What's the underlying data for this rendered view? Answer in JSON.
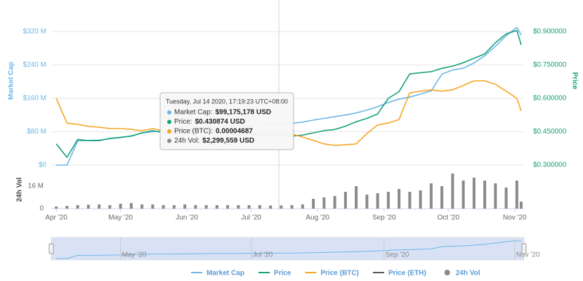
{
  "chart_data": [
    {
      "type": "line",
      "ylabel": "Market Cap",
      "y2label": "Price",
      "x": [
        "2020-04-01",
        "2020-04-06",
        "2020-04-11",
        "2020-04-16",
        "2020-04-21",
        "2020-04-26",
        "2020-05-01",
        "2020-05-06",
        "2020-05-11",
        "2020-05-16",
        "2020-05-21",
        "2020-05-26",
        "2020-05-31",
        "2020-06-05",
        "2020-06-10",
        "2020-06-15",
        "2020-06-20",
        "2020-06-25",
        "2020-06-30",
        "2020-07-05",
        "2020-07-10",
        "2020-07-15",
        "2020-07-20",
        "2020-07-25",
        "2020-07-30",
        "2020-08-04",
        "2020-08-09",
        "2020-08-14",
        "2020-08-19",
        "2020-08-24",
        "2020-08-29",
        "2020-09-03",
        "2020-09-08",
        "2020-09-13",
        "2020-09-18",
        "2020-09-23",
        "2020-09-28",
        "2020-10-03",
        "2020-10-08",
        "2020-10-13",
        "2020-10-18",
        "2020-10-23",
        "2020-10-28",
        "2020-11-02",
        "2020-11-04"
      ],
      "xlim": [
        "2020-03-30",
        "2020-11-05"
      ],
      "series": [
        {
          "name": "Market Cap",
          "color": "#6cb6e8",
          "axis": "y",
          "values": [
            0,
            0,
            58000000,
            59000000,
            60000000,
            63000000,
            66000000,
            70000000,
            77000000,
            80000000,
            82000000,
            83000000,
            86000000,
            88000000,
            90000000,
            91000000,
            92000000,
            93000000,
            95000000,
            96000000,
            98000000,
            99000000,
            100000000,
            103000000,
            108000000,
            112000000,
            116000000,
            120000000,
            125000000,
            132000000,
            140000000,
            150000000,
            158000000,
            163000000,
            170000000,
            178000000,
            218000000,
            228000000,
            232000000,
            245000000,
            262000000,
            285000000,
            310000000,
            330000000,
            312000000
          ]
        },
        {
          "name": "Price",
          "color": "#16a07a",
          "axis": "y2",
          "values": [
            0.395,
            0.335,
            0.415,
            0.41,
            0.41,
            0.42,
            0.425,
            0.43,
            0.445,
            0.455,
            0.445,
            0.44,
            0.45,
            0.455,
            0.45,
            0.445,
            0.44,
            0.435,
            0.44,
            0.435,
            0.432,
            0.431,
            0.43,
            0.435,
            0.445,
            0.455,
            0.46,
            0.475,
            0.495,
            0.51,
            0.53,
            0.6,
            0.63,
            0.71,
            0.715,
            0.72,
            0.735,
            0.745,
            0.76,
            0.78,
            0.8,
            0.85,
            0.89,
            0.905,
            0.84
          ]
        },
        {
          "name": "Price (BTC)",
          "color": "#f5a623",
          "axis": "y3",
          "values": [
            5.93e-05,
            5.03e-05,
            4.98e-05,
            4.91e-05,
            4.88e-05,
            4.83e-05,
            4.83e-05,
            4.8e-05,
            4.75e-05,
            4.83e-05,
            4.75e-05,
            4.7e-05,
            4.78e-05,
            4.8e-05,
            4.75e-05,
            4.73e-05,
            4.7e-05,
            4.68e-05,
            4.7e-05,
            4.68e-05,
            4.65e-05,
            4.65e-05,
            4.63e-05,
            4.52e-05,
            4.4e-05,
            4.27e-05,
            4.22e-05,
            4.24e-05,
            4.27e-05,
            4.65e-05,
            4.96e-05,
            5.03e-05,
            5.16e-05,
            6.13e-05,
            6.19e-05,
            6.24e-05,
            6.19e-05,
            6.24e-05,
            6.4e-05,
            6.57e-05,
            6.57e-05,
            6.44e-05,
            6.19e-05,
            5.93e-05,
            5.47e-05
          ]
        }
      ],
      "hidden_series": [
        {
          "name": "Price (ETH)",
          "color": "#555555"
        }
      ],
      "ylim": [
        0,
        362000000
      ],
      "yticks": [
        {
          "value": 0,
          "label": "$0"
        },
        {
          "value": 80000000,
          "label": "$80 M"
        },
        {
          "value": 160000000,
          "label": "$160 M"
        },
        {
          "value": 240000000,
          "label": "$240 M"
        },
        {
          "value": 320000000,
          "label": "$320 M"
        }
      ],
      "y2lim": [
        0.3,
        0.979
      ],
      "y2ticks": [
        {
          "value": 0.3,
          "label": "$0.300000"
        },
        {
          "value": 0.45,
          "label": "$0.450000"
        },
        {
          "value": 0.6,
          "label": "$0.600000"
        },
        {
          "value": 0.75,
          "label": "$0.750000"
        },
        {
          "value": 0.9,
          "label": "$0.900000"
        }
      ],
      "y3lim": [
        3.5e-05,
        9e-05
      ],
      "grid": true
    },
    {
      "type": "bar",
      "ylabel": "24h Vol",
      "x": [
        "2020-04-01",
        "2020-04-06",
        "2020-04-11",
        "2020-04-16",
        "2020-04-21",
        "2020-04-26",
        "2020-05-01",
        "2020-05-06",
        "2020-05-11",
        "2020-05-16",
        "2020-05-21",
        "2020-05-26",
        "2020-05-31",
        "2020-06-05",
        "2020-06-10",
        "2020-06-15",
        "2020-06-20",
        "2020-06-25",
        "2020-06-30",
        "2020-07-05",
        "2020-07-10",
        "2020-07-15",
        "2020-07-20",
        "2020-07-25",
        "2020-07-30",
        "2020-08-04",
        "2020-08-09",
        "2020-08-14",
        "2020-08-19",
        "2020-08-24",
        "2020-08-29",
        "2020-09-03",
        "2020-09-08",
        "2020-09-13",
        "2020-09-18",
        "2020-09-23",
        "2020-09-28",
        "2020-10-03",
        "2020-10-08",
        "2020-10-13",
        "2020-10-18",
        "2020-10-23",
        "2020-10-28",
        "2020-11-02",
        "2020-11-04"
      ],
      "xlim": [
        "2020-03-30",
        "2020-11-05"
      ],
      "series": [
        {
          "name": "24h Vol",
          "color": "#8a8a8a",
          "values": [
            1500000,
            2000000,
            2500000,
            2800000,
            3000000,
            2500000,
            3500000,
            4000000,
            3000000,
            3000000,
            2500000,
            2500000,
            3000000,
            2500000,
            2500000,
            2500000,
            2500000,
            2500000,
            2500000,
            2500000,
            2300000,
            2300000,
            2500000,
            3000000,
            7000000,
            8000000,
            9000000,
            12000000,
            16000000,
            10000000,
            11000000,
            12000000,
            14000000,
            12000000,
            13000000,
            18000000,
            16000000,
            25000000,
            20000000,
            22000000,
            20000000,
            18000000,
            15000000,
            20000000,
            5000000
          ]
        }
      ],
      "ylim": [
        0,
        26000000
      ],
      "yticks": [
        0,
        {
          "value": 16000000,
          "label": "16 M"
        }
      ],
      "xticks": [
        {
          "value": "2020-04-01",
          "label": "Apr '20"
        },
        {
          "value": "2020-05-01",
          "label": "May '20"
        },
        {
          "value": "2020-06-01",
          "label": "Jun '20"
        },
        {
          "value": "2020-07-01",
          "label": "Jul '20"
        },
        {
          "value": "2020-08-01",
          "label": "Aug '20"
        },
        {
          "value": "2020-09-01",
          "label": "Sep '20"
        },
        {
          "value": "2020-10-01",
          "label": "Oct '20"
        },
        {
          "value": "2020-11-01",
          "label": "Nov '20"
        }
      ],
      "grid": false
    }
  ],
  "navigator": {
    "xticks": [
      {
        "value": "2020-05-01",
        "label": "May '20"
      },
      {
        "value": "2020-07-01",
        "label": "Jul '20"
      },
      {
        "value": "2020-09-01",
        "label": "Sep '20"
      },
      {
        "value": "2020-11-01",
        "label": "Nov '20"
      }
    ]
  },
  "tooltip": {
    "title": "Tuesday, Jul 14 2020, 17:19:23 UTC+08:00",
    "items": [
      {
        "label": "Market Cap:",
        "value": "$99,175,178 USD"
      },
      {
        "label": "Price:",
        "value": "$0.430874 USD"
      },
      {
        "label": "Price (BTC):",
        "value": "0.00004687"
      },
      {
        "label": "24h Vol:",
        "value": "$2,299,559 USD"
      }
    ]
  }
}
